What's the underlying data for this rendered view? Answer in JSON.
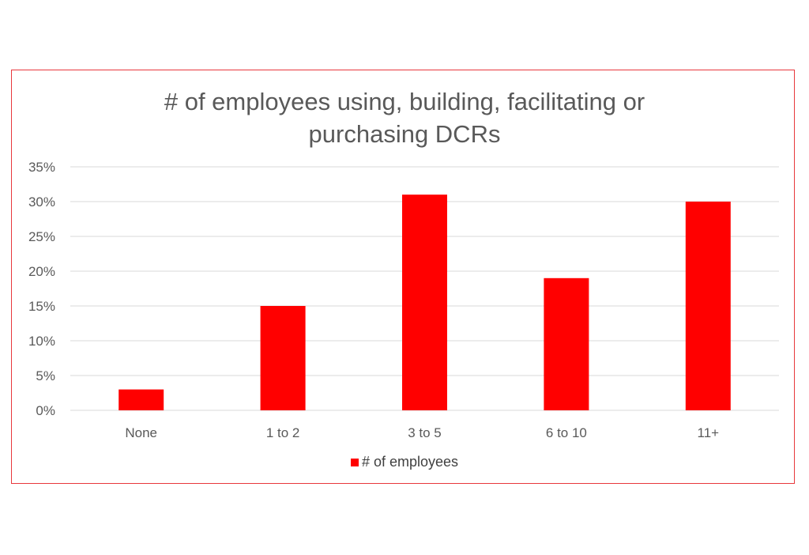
{
  "chart_data": {
    "type": "bar",
    "title_lines": [
      "# of employees using, building, facilitating or",
      "purchasing DCRs"
    ],
    "categories": [
      "None",
      "1 to 2",
      "3 to 5",
      "6 to 10",
      "11+"
    ],
    "series": [
      {
        "name": "# of employees",
        "values": [
          3,
          15,
          31,
          19,
          30
        ]
      }
    ],
    "ylim": [
      0,
      35
    ],
    "yticks": [
      0,
      5,
      10,
      15,
      20,
      25,
      30,
      35
    ],
    "ytick_labels": [
      "0%",
      "5%",
      "10%",
      "15%",
      "20%",
      "25%",
      "30%",
      "35%"
    ],
    "grid": true,
    "legend_position": "bottom",
    "colors": {
      "bar": "#ff0000",
      "frame": "#e8383d",
      "grid": "#d9d9d9",
      "text": "#595959"
    }
  }
}
